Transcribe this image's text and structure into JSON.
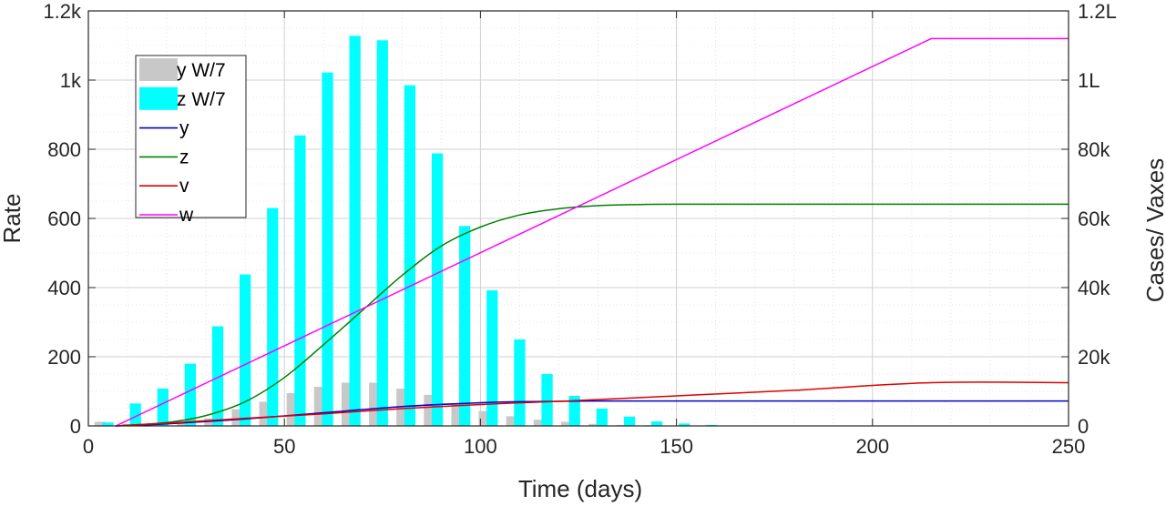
{
  "chart_data": {
    "type": "bar+line",
    "xlabel": "Time (days)",
    "ylabel_left": "Rate",
    "ylabel_right": "Cases/ Vaxes",
    "xlim": [
      0,
      250
    ],
    "ylim_left": [
      0,
      1200
    ],
    "ylim_right": [
      0,
      120000
    ],
    "x_ticks": [
      0,
      50,
      100,
      150,
      200,
      250
    ],
    "x_tick_labels": [
      "0",
      "50",
      "100",
      "150",
      "200",
      "250"
    ],
    "y_left_ticks": [
      0,
      200,
      400,
      600,
      800,
      1000,
      1200
    ],
    "y_left_tick_labels": [
      "0",
      "200",
      "400",
      "600",
      "800",
      "1k",
      "1.2k"
    ],
    "y_right_ticks": [
      0,
      20000,
      40000,
      60000,
      80000,
      100000,
      120000
    ],
    "y_right_tick_labels": [
      "0",
      "20k",
      "40k",
      "60k",
      "80k",
      "1L",
      "1.2L"
    ],
    "grid": true,
    "legend_position": "top-left",
    "bar_series": [
      {
        "name": "y W/7",
        "color": "#c8c8c8",
        "x": [
          3,
          10,
          17,
          24,
          31,
          38,
          45,
          52,
          59,
          66,
          73,
          80,
          87,
          94,
          101,
          108,
          115,
          122,
          129,
          136,
          143,
          150,
          157
        ],
        "values": [
          12,
          6,
          8,
          10,
          22,
          48,
          70,
          95,
          113,
          125,
          125,
          108,
          90,
          65,
          43,
          28,
          18,
          12,
          6,
          3,
          2,
          1,
          1
        ]
      },
      {
        "name": "z W/7",
        "color": "#00ffff",
        "x": [
          5,
          12,
          19,
          26,
          33,
          40,
          47,
          54,
          61,
          68,
          75,
          82,
          89,
          96,
          103,
          110,
          117,
          124,
          131,
          138,
          145,
          152,
          159
        ],
        "values": [
          10,
          65,
          108,
          180,
          288,
          438,
          630,
          840,
          1022,
          1128,
          1115,
          985,
          788,
          578,
          392,
          250,
          150,
          87,
          50,
          27,
          13,
          7,
          3
        ]
      }
    ],
    "line_series": [
      {
        "name": "y",
        "color": "#0000cc",
        "axis": "right",
        "x": [
          7,
          20,
          40,
          60,
          80,
          100,
          110,
          120,
          130,
          150,
          200,
          250
        ],
        "values": [
          0,
          600,
          2000,
          3800,
          5600,
          6700,
          7000,
          7100,
          7200,
          7200,
          7200,
          7200
        ]
      },
      {
        "name": "z",
        "color": "#008000",
        "axis": "right",
        "x": [
          7,
          20,
          30,
          40,
          50,
          60,
          70,
          80,
          90,
          100,
          110,
          120,
          130,
          140,
          150,
          200,
          250
        ],
        "values": [
          0,
          1000,
          3000,
          7000,
          14000,
          23500,
          33500,
          43500,
          52000,
          57500,
          61000,
          62800,
          63700,
          64000,
          64100,
          64100,
          64100
        ]
      },
      {
        "name": "v",
        "color": "#e00000",
        "axis": "right",
        "x": [
          7,
          20,
          40,
          60,
          80,
          100,
          120,
          150,
          180,
          215,
          250
        ],
        "values": [
          0,
          800,
          2200,
          3500,
          5000,
          6200,
          7100,
          8700,
          10300,
          12500,
          12500
        ]
      },
      {
        "name": "w",
        "color": "#ff00ff",
        "axis": "right",
        "x": [
          7,
          215,
          250
        ],
        "values": [
          0,
          112000,
          112000
        ]
      }
    ]
  }
}
